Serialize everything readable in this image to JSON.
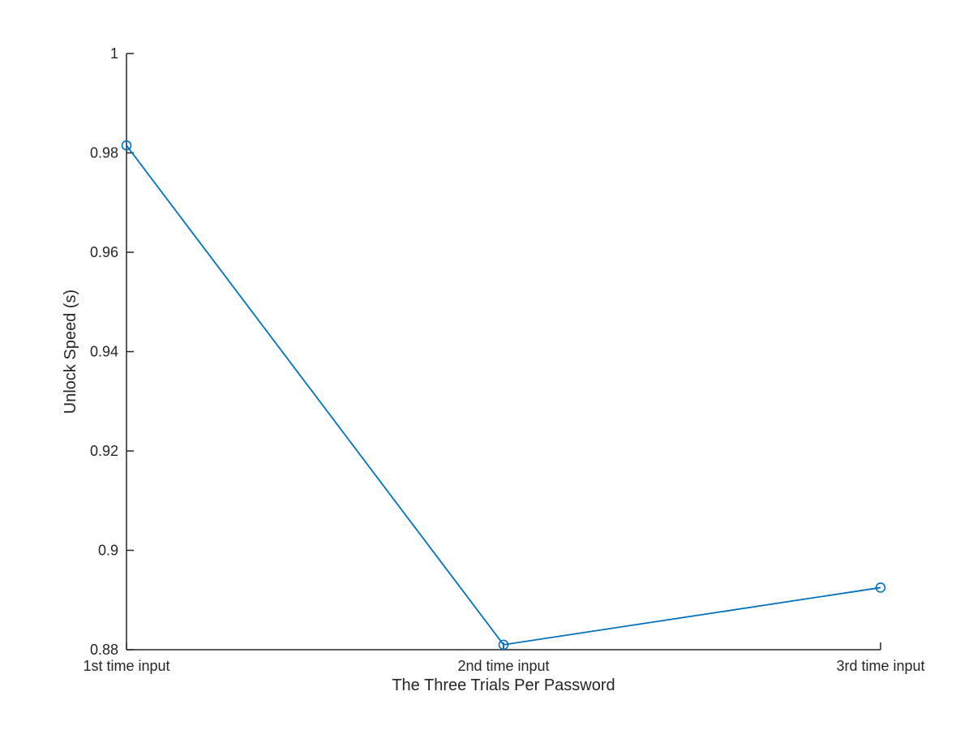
{
  "chart_data": {
    "type": "line",
    "title": "",
    "xlabel": "The Three Trials Per Password",
    "ylabel": "Unlock Speed (s)",
    "categories": [
      "1st time input",
      "2nd time input",
      "3rd time input"
    ],
    "series": [
      {
        "values": [
          0.9815,
          0.881,
          0.8925
        ],
        "color": "#0072bd",
        "marker": "circle"
      }
    ],
    "ylim": [
      0.88,
      1.0
    ],
    "yticks": [
      0.88,
      0.9,
      0.92,
      0.94,
      0.96,
      0.98,
      1.0
    ],
    "ytick_labels": [
      "0.88",
      "0.9",
      "0.92",
      "0.94",
      "0.96",
      "0.98",
      "1"
    ],
    "grid": false,
    "legend": "none"
  }
}
